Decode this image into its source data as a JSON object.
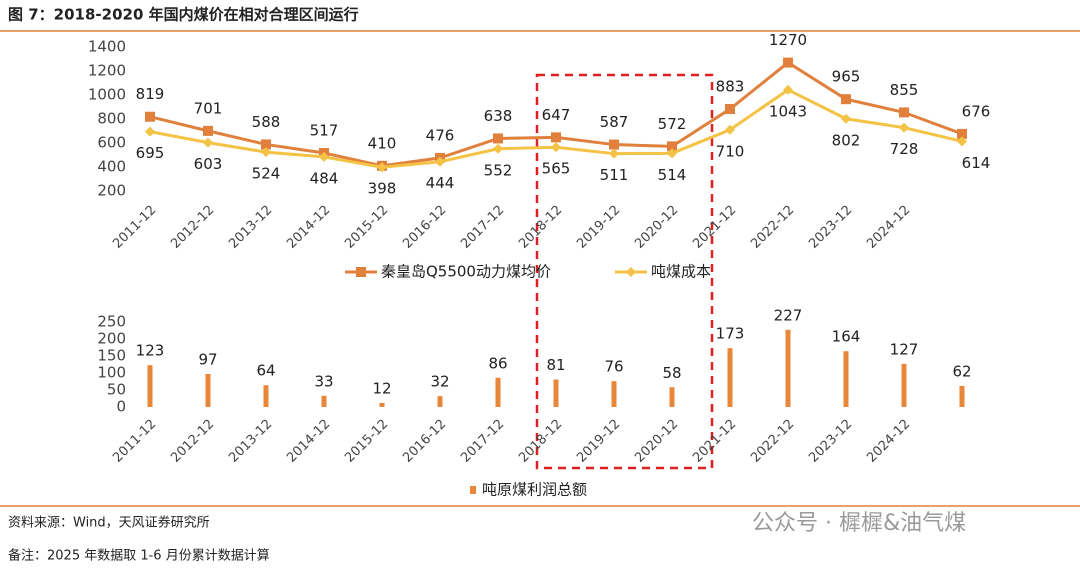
{
  "title": "图 7：2018-2020 年国内煤价在相对合理区间运行",
  "chart_data": [
    {
      "type": "line",
      "categories": [
        "2011-12",
        "2012-12",
        "2013-12",
        "2014-12",
        "2015-12",
        "2016-12",
        "2017-12",
        "2018-12",
        "2019-12",
        "2020-12",
        "2021-12",
        "2022-12",
        "2023-12",
        "2024-12",
        null
      ],
      "series": [
        {
          "name": "秦皇岛Q5500动力煤均价",
          "color": "#e0803c",
          "values": [
            819,
            701,
            588,
            517,
            410,
            476,
            638,
            647,
            587,
            572,
            883,
            1270,
            965,
            855,
            676
          ]
        },
        {
          "name": "吨煤成本",
          "color": "#f4c244",
          "values": [
            695,
            603,
            524,
            484,
            398,
            444,
            552,
            565,
            511,
            514,
            710,
            1043,
            802,
            728,
            614
          ]
        }
      ],
      "ylim": [
        200,
        1400
      ],
      "yticks": [
        200,
        400,
        600,
        800,
        1000,
        1200,
        1400
      ]
    },
    {
      "type": "bar",
      "categories": [
        "2011-12",
        "2012-12",
        "2013-12",
        "2014-12",
        "2015-12",
        "2016-12",
        "2017-12",
        "2018-12",
        "2019-12",
        "2020-12",
        "2021-12",
        "2022-12",
        "2023-12",
        "2024-12",
        null
      ],
      "series": [
        {
          "name": "吨原煤利润总额",
          "color": "#e8863a",
          "values": [
            123,
            97,
            64,
            33,
            12,
            32,
            86,
            81,
            76,
            58,
            173,
            227,
            164,
            127,
            62
          ]
        }
      ],
      "ylim": [
        0,
        250
      ],
      "yticks": [
        0,
        50,
        100,
        150,
        200,
        250
      ]
    }
  ],
  "source": "资料来源：Wind，天风证券研究所",
  "watermark": "公众号 · 樨樨&油气煤",
  "note": "备注：2025 年数据取 1-6 月份累计数据计算"
}
